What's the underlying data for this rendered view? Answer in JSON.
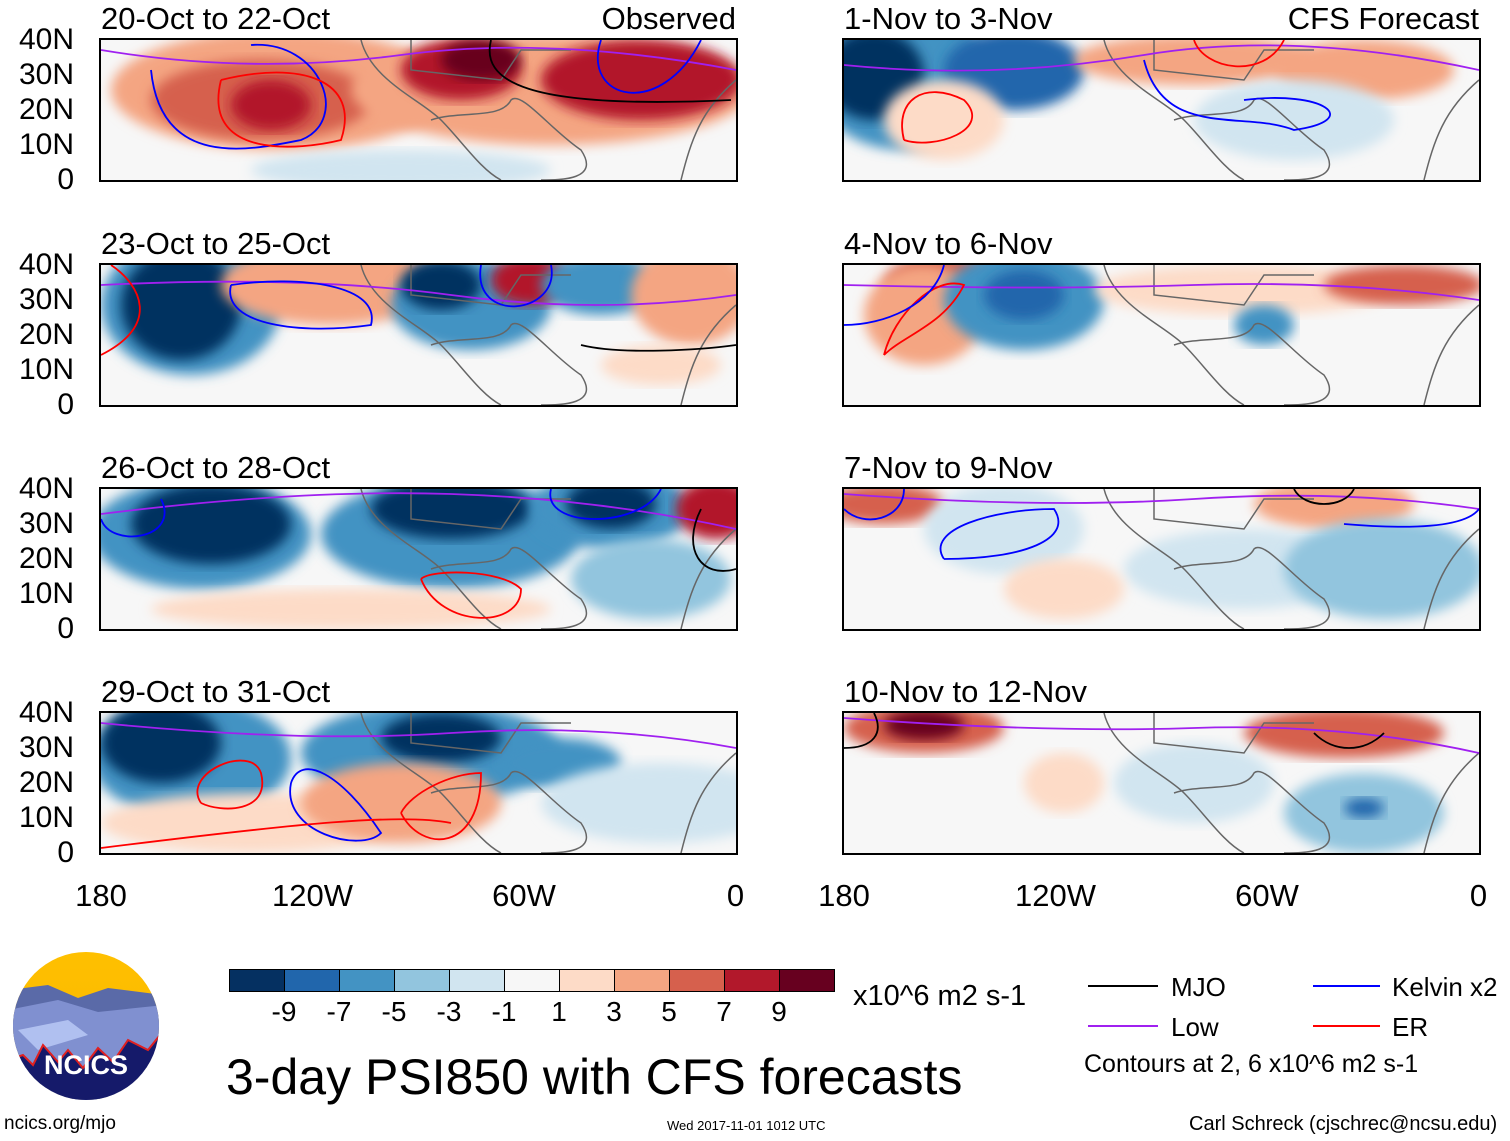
{
  "title": "3-day PSI850 with CFS forecasts",
  "website": "ncics.org/mjo",
  "timestamp": "Wed 2017-11-01 1012 UTC",
  "author": "Carl Schreck (cjschrec@ncsu.edu)",
  "logo_text": "NCICS",
  "colors": {
    "shading": [
      "#053061",
      "#2166ac",
      "#4393c3",
      "#92c5de",
      "#d1e5f0",
      "#f7f7f7",
      "#fddbc7",
      "#f4a582",
      "#d6604d",
      "#b2182b",
      "#67001f"
    ],
    "mjo": "#000000",
    "kelvin": "#0000ff",
    "low": "#a020f0",
    "er": "#ff0000",
    "coast": "#666666"
  },
  "chart_data": {
    "type": "heatmap",
    "title": "3-day PSI850 with CFS forecasts",
    "units": "x10^6 m2 s-1",
    "colorbar_ticks": [
      "-9",
      "-7",
      "-5",
      "-3",
      "-1",
      "1",
      "3",
      "5",
      "7",
      "9"
    ],
    "lat_ticks": [
      "40N",
      "30N",
      "20N",
      "10N",
      "0"
    ],
    "lon_ticks": [
      "180",
      "120W",
      "60W",
      "0"
    ],
    "xlim": [
      -180,
      0
    ],
    "ylim": [
      0,
      40
    ],
    "legend": [
      {
        "name": "MJO",
        "color": "#000000"
      },
      {
        "name": "Kelvin x2",
        "color": "#0000ff"
      },
      {
        "name": "Low",
        "color": "#a020f0"
      },
      {
        "name": "ER",
        "color": "#ff0000"
      }
    ],
    "contour_note": "Contours at 2, 6 x10^6 m2 s-1",
    "panels": [
      {
        "period": "20-Oct to 22-Oct",
        "label": "Observed"
      },
      {
        "period": "23-Oct to 25-Oct",
        "label": ""
      },
      {
        "period": "26-Oct to 28-Oct",
        "label": ""
      },
      {
        "period": "29-Oct to 31-Oct",
        "label": ""
      },
      {
        "period": "1-Nov to 3-Nov",
        "label": "CFS Forecast"
      },
      {
        "period": "4-Nov to 6-Nov",
        "label": ""
      },
      {
        "period": "7-Nov to 9-Nov",
        "label": ""
      },
      {
        "period": "10-Nov to 12-Nov",
        "label": ""
      }
    ]
  }
}
